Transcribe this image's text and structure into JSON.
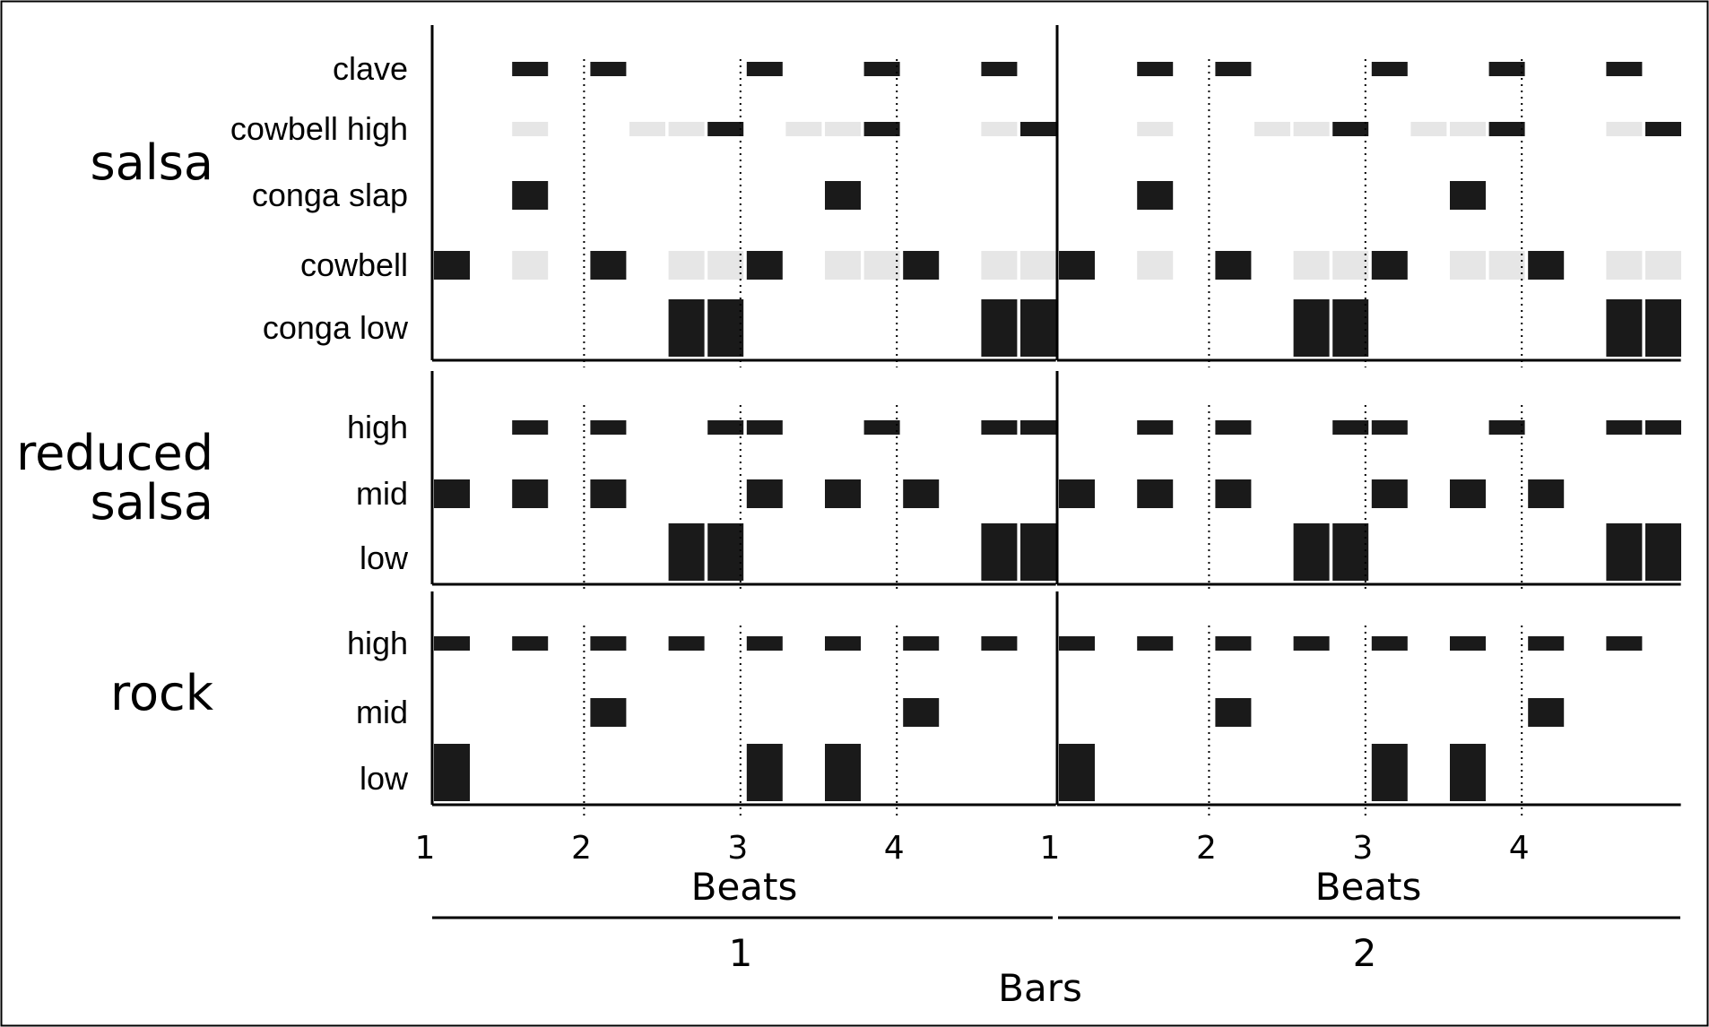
{
  "chart_data": {
    "type": "rhythm-grid",
    "x_axis": {
      "title": "Beats",
      "beat_ticks": [
        "1",
        "2",
        "3",
        "4"
      ],
      "steps_per_beat": 4,
      "beats_per_bar": 4
    },
    "bars_axis": {
      "title": "Bars",
      "bars": [
        "1",
        "2"
      ]
    },
    "grid": {
      "dotted_beat_lines": true
    },
    "colors": {
      "note": "#1a1a1a",
      "ghost_note": "#e6e6e6",
      "axis": "#000000",
      "frame": "#000000"
    },
    "groups": [
      {
        "label": [
          "salsa"
        ],
        "rows": [
          {
            "label": "clave",
            "weight": "small",
            "notes": [
              2,
              4,
              8,
              11,
              14
            ],
            "ghost_notes": []
          },
          {
            "label": "cowbell high",
            "weight": "small",
            "notes": [
              7,
              11,
              15
            ],
            "ghost_notes": [
              2,
              5,
              6,
              9,
              10,
              14
            ]
          },
          {
            "label": "conga slap",
            "weight": "medium",
            "notes": [
              2,
              10
            ],
            "ghost_notes": []
          },
          {
            "label": "cowbell",
            "weight": "medium",
            "notes": [
              0,
              4,
              8,
              12
            ],
            "ghost_notes": [
              2,
              6,
              7,
              10,
              11,
              14,
              15
            ]
          },
          {
            "label": "conga low",
            "weight": "large",
            "notes": [
              6,
              7,
              14,
              15
            ],
            "ghost_notes": []
          }
        ]
      },
      {
        "label": [
          "reduced",
          "salsa"
        ],
        "rows": [
          {
            "label": "high",
            "weight": "small",
            "notes": [
              2,
              4,
              7,
              8,
              11,
              14,
              15
            ],
            "ghost_notes": []
          },
          {
            "label": "mid",
            "weight": "medium",
            "notes": [
              0,
              2,
              4,
              8,
              10,
              12
            ],
            "ghost_notes": []
          },
          {
            "label": "low",
            "weight": "large",
            "notes": [
              6,
              7,
              14,
              15
            ],
            "ghost_notes": []
          }
        ]
      },
      {
        "label": [
          "rock"
        ],
        "rows": [
          {
            "label": "high",
            "weight": "small",
            "notes": [
              0,
              2,
              4,
              6,
              8,
              10,
              12,
              14
            ],
            "ghost_notes": []
          },
          {
            "label": "mid",
            "weight": "medium",
            "notes": [
              4,
              12
            ],
            "ghost_notes": []
          },
          {
            "label": "low",
            "weight": "large",
            "notes": [
              0,
              8,
              10
            ],
            "ghost_notes": []
          }
        ]
      }
    ]
  }
}
